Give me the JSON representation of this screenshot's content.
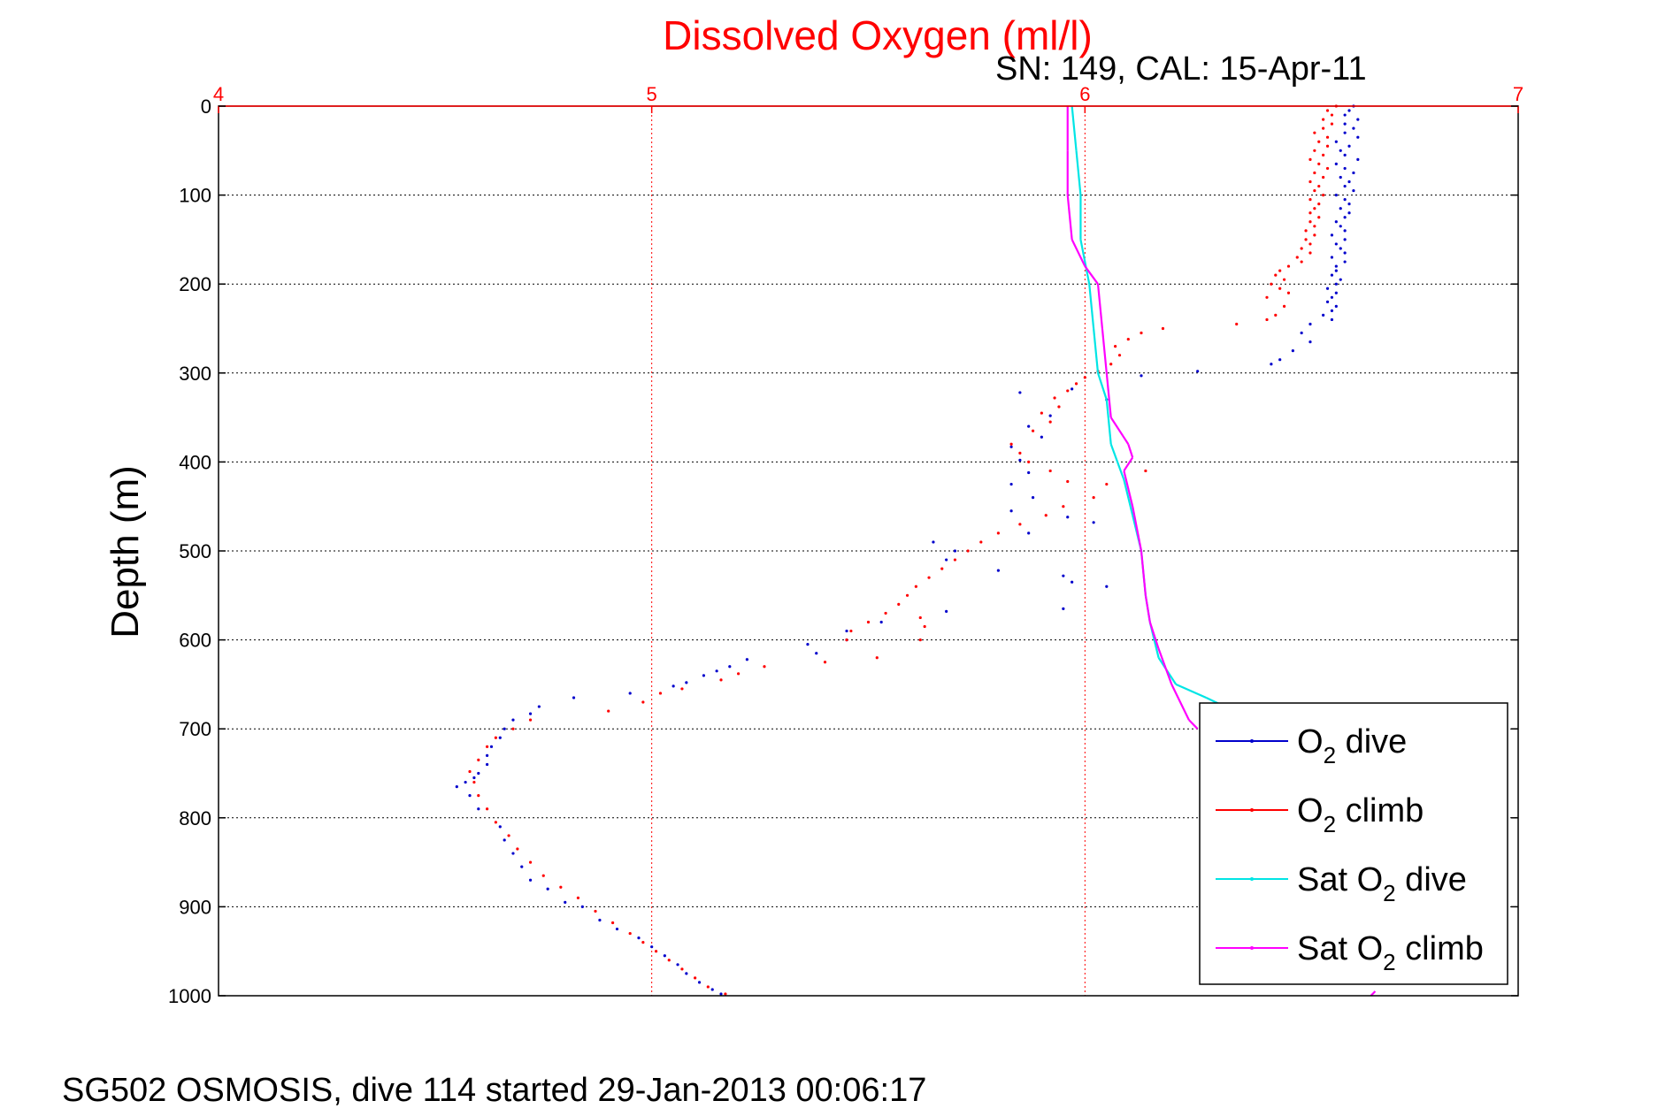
{
  "chart_data": {
    "type": "scatter",
    "title": "Dissolved Oxygen (ml/l)",
    "subtitle": "SN: 149, CAL: 15-Apr-11",
    "ylabel": "Depth (m)",
    "xlabel": "",
    "footer": "SG502 OSMOSIS, dive 114 started 29-Jan-2013 00:06:17",
    "xlim": [
      4,
      7
    ],
    "ylim": [
      0,
      1000
    ],
    "y_reversed": true,
    "x_ticks": [
      "4",
      "5",
      "6",
      "7"
    ],
    "y_ticks": [
      "0",
      "100",
      "200",
      "300",
      "400",
      "500",
      "600",
      "700",
      "800",
      "900",
      "1000"
    ],
    "x_axis_position": "top",
    "grid": true,
    "legend_position": "bottom-right",
    "colors": {
      "axis_x": "#ff0000",
      "title": "#ff0000",
      "o2_dive": "#0000cc",
      "o2_climb": "#ff0000",
      "sat_dive": "#00e5e5",
      "sat_climb": "#ff00ff"
    },
    "series": [
      {
        "key": "o2_dive",
        "legend": {
          "main": "O",
          "sub": "2",
          "rest": " dive"
        },
        "style": "dots",
        "points": [
          [
            6.62,
            0
          ],
          [
            6.61,
            5
          ],
          [
            6.6,
            10
          ],
          [
            6.63,
            15
          ],
          [
            6.6,
            20
          ],
          [
            6.62,
            25
          ],
          [
            6.6,
            30
          ],
          [
            6.63,
            35
          ],
          [
            6.58,
            40
          ],
          [
            6.61,
            45
          ],
          [
            6.59,
            50
          ],
          [
            6.6,
            55
          ],
          [
            6.63,
            60
          ],
          [
            6.58,
            65
          ],
          [
            6.6,
            70
          ],
          [
            6.62,
            75
          ],
          [
            6.59,
            80
          ],
          [
            6.61,
            85
          ],
          [
            6.6,
            90
          ],
          [
            6.62,
            95
          ],
          [
            6.58,
            100
          ],
          [
            6.6,
            105
          ],
          [
            6.61,
            110
          ],
          [
            6.59,
            115
          ],
          [
            6.61,
            120
          ],
          [
            6.6,
            125
          ],
          [
            6.58,
            130
          ],
          [
            6.59,
            135
          ],
          [
            6.6,
            140
          ],
          [
            6.57,
            145
          ],
          [
            6.6,
            150
          ],
          [
            6.58,
            155
          ],
          [
            6.59,
            160
          ],
          [
            6.6,
            165
          ],
          [
            6.57,
            170
          ],
          [
            6.6,
            175
          ],
          [
            6.58,
            180
          ],
          [
            6.58,
            185
          ],
          [
            6.57,
            190
          ],
          [
            6.59,
            195
          ],
          [
            6.58,
            200
          ],
          [
            6.56,
            205
          ],
          [
            6.58,
            210
          ],
          [
            6.57,
            215
          ],
          [
            6.56,
            220
          ],
          [
            6.58,
            225
          ],
          [
            6.57,
            230
          ],
          [
            6.55,
            235
          ],
          [
            6.57,
            240
          ],
          [
            6.52,
            245
          ],
          [
            6.5,
            255
          ],
          [
            6.52,
            265
          ],
          [
            6.48,
            275
          ],
          [
            6.45,
            285
          ],
          [
            6.43,
            290
          ],
          [
            6.26,
            298
          ],
          [
            6.13,
            303
          ],
          [
            6.05,
            330
          ],
          [
            5.97,
            318
          ],
          [
            5.85,
            322
          ],
          [
            5.92,
            348
          ],
          [
            5.87,
            360
          ],
          [
            5.9,
            372
          ],
          [
            5.83,
            383
          ],
          [
            5.85,
            398
          ],
          [
            5.87,
            412
          ],
          [
            5.83,
            425
          ],
          [
            5.88,
            440
          ],
          [
            5.83,
            455
          ],
          [
            5.96,
            462
          ],
          [
            6.02,
            468
          ],
          [
            5.87,
            480
          ],
          [
            5.65,
            490
          ],
          [
            5.7,
            500
          ],
          [
            5.68,
            510
          ],
          [
            5.8,
            522
          ],
          [
            5.95,
            528
          ],
          [
            5.97,
            535
          ],
          [
            6.05,
            540
          ],
          [
            5.95,
            565
          ],
          [
            5.68,
            568
          ],
          [
            5.53,
            580
          ],
          [
            5.45,
            590
          ],
          [
            5.45,
            600
          ],
          [
            5.36,
            605
          ],
          [
            5.38,
            615
          ],
          [
            5.22,
            622
          ],
          [
            5.18,
            630
          ],
          [
            5.15,
            635
          ],
          [
            5.12,
            640
          ],
          [
            5.08,
            648
          ],
          [
            5.05,
            652
          ],
          [
            4.95,
            660
          ],
          [
            4.82,
            665
          ],
          [
            4.74,
            675
          ],
          [
            4.72,
            683
          ],
          [
            4.68,
            690
          ],
          [
            4.66,
            700
          ],
          [
            4.65,
            710
          ],
          [
            4.63,
            720
          ],
          [
            4.62,
            730
          ],
          [
            4.62,
            740
          ],
          [
            4.6,
            750
          ],
          [
            4.59,
            755
          ],
          [
            4.57,
            760
          ],
          [
            4.55,
            765
          ],
          [
            4.58,
            775
          ],
          [
            4.6,
            790
          ],
          [
            4.65,
            810
          ],
          [
            4.66,
            825
          ],
          [
            4.68,
            840
          ],
          [
            4.7,
            855
          ],
          [
            4.72,
            870
          ],
          [
            4.76,
            880
          ],
          [
            4.8,
            895
          ],
          [
            4.84,
            900
          ],
          [
            4.88,
            915
          ],
          [
            4.92,
            925
          ],
          [
            4.97,
            935
          ],
          [
            5.0,
            945
          ],
          [
            5.03,
            955
          ],
          [
            5.06,
            965
          ],
          [
            5.08,
            975
          ],
          [
            5.11,
            985
          ],
          [
            5.14,
            993
          ],
          [
            5.16,
            998
          ]
        ]
      },
      {
        "key": "o2_climb",
        "legend": {
          "main": "O",
          "sub": "2",
          "rest": " climb"
        },
        "style": "dots",
        "points": [
          [
            6.58,
            0
          ],
          [
            6.56,
            5
          ],
          [
            6.57,
            10
          ],
          [
            6.55,
            15
          ],
          [
            6.57,
            20
          ],
          [
            6.55,
            25
          ],
          [
            6.53,
            30
          ],
          [
            6.56,
            35
          ],
          [
            6.54,
            40
          ],
          [
            6.56,
            45
          ],
          [
            6.53,
            50
          ],
          [
            6.55,
            55
          ],
          [
            6.52,
            60
          ],
          [
            6.54,
            65
          ],
          [
            6.56,
            70
          ],
          [
            6.53,
            75
          ],
          [
            6.55,
            80
          ],
          [
            6.52,
            85
          ],
          [
            6.54,
            90
          ],
          [
            6.53,
            95
          ],
          [
            6.55,
            100
          ],
          [
            6.52,
            105
          ],
          [
            6.54,
            110
          ],
          [
            6.53,
            115
          ],
          [
            6.52,
            120
          ],
          [
            6.54,
            125
          ],
          [
            6.52,
            130
          ],
          [
            6.53,
            135
          ],
          [
            6.51,
            140
          ],
          [
            6.53,
            145
          ],
          [
            6.51,
            150
          ],
          [
            6.52,
            155
          ],
          [
            6.5,
            160
          ],
          [
            6.52,
            165
          ],
          [
            6.49,
            170
          ],
          [
            6.5,
            175
          ],
          [
            6.47,
            180
          ],
          [
            6.45,
            185
          ],
          [
            6.44,
            190
          ],
          [
            6.46,
            195
          ],
          [
            6.43,
            200
          ],
          [
            6.45,
            205
          ],
          [
            6.47,
            210
          ],
          [
            6.42,
            215
          ],
          [
            6.46,
            225
          ],
          [
            6.44,
            235
          ],
          [
            6.42,
            240
          ],
          [
            6.35,
            245
          ],
          [
            6.18,
            250
          ],
          [
            6.13,
            255
          ],
          [
            6.1,
            262
          ],
          [
            6.07,
            270
          ],
          [
            6.08,
            280
          ],
          [
            6.06,
            290
          ],
          [
            6.03,
            298
          ],
          [
            6.0,
            305
          ],
          [
            5.98,
            312
          ],
          [
            5.96,
            320
          ],
          [
            5.93,
            328
          ],
          [
            5.94,
            338
          ],
          [
            5.9,
            345
          ],
          [
            5.92,
            355
          ],
          [
            5.88,
            365
          ],
          [
            5.83,
            380
          ],
          [
            5.85,
            390
          ],
          [
            5.87,
            400
          ],
          [
            5.92,
            410
          ],
          [
            5.96,
            422
          ],
          [
            6.05,
            425
          ],
          [
            6.14,
            410
          ],
          [
            6.02,
            440
          ],
          [
            5.95,
            450
          ],
          [
            5.91,
            460
          ],
          [
            5.85,
            470
          ],
          [
            5.8,
            480
          ],
          [
            5.76,
            490
          ],
          [
            5.73,
            500
          ],
          [
            5.7,
            510
          ],
          [
            5.67,
            520
          ],
          [
            5.64,
            530
          ],
          [
            5.61,
            540
          ],
          [
            5.59,
            550
          ],
          [
            5.57,
            560
          ],
          [
            5.54,
            570
          ],
          [
            5.5,
            580
          ],
          [
            5.46,
            590
          ],
          [
            5.45,
            600
          ],
          [
            5.62,
            575
          ],
          [
            5.63,
            585
          ],
          [
            5.62,
            600
          ],
          [
            5.52,
            620
          ],
          [
            5.4,
            625
          ],
          [
            5.26,
            630
          ],
          [
            5.2,
            638
          ],
          [
            5.16,
            645
          ],
          [
            5.07,
            655
          ],
          [
            5.02,
            660
          ],
          [
            4.98,
            670
          ],
          [
            4.9,
            680
          ],
          [
            4.72,
            690
          ],
          [
            4.68,
            700
          ],
          [
            4.64,
            710
          ],
          [
            4.62,
            720
          ],
          [
            4.6,
            735
          ],
          [
            4.58,
            748
          ],
          [
            4.59,
            760
          ],
          [
            4.6,
            775
          ],
          [
            4.62,
            790
          ],
          [
            4.64,
            805
          ],
          [
            4.67,
            820
          ],
          [
            4.69,
            835
          ],
          [
            4.72,
            850
          ],
          [
            4.75,
            865
          ],
          [
            4.79,
            878
          ],
          [
            4.83,
            890
          ],
          [
            4.87,
            905
          ],
          [
            4.91,
            918
          ],
          [
            4.95,
            930
          ],
          [
            4.98,
            940
          ],
          [
            5.01,
            950
          ],
          [
            5.04,
            960
          ],
          [
            5.07,
            970
          ],
          [
            5.1,
            980
          ],
          [
            5.13,
            990
          ],
          [
            5.17,
            998
          ]
        ]
      },
      {
        "key": "sat_dive",
        "legend": {
          "main": "Sat O",
          "sub": "2",
          "rest": " dive"
        },
        "style": "line",
        "points": [
          [
            5.97,
            0
          ],
          [
            5.98,
            50
          ],
          [
            5.99,
            100
          ],
          [
            5.99,
            150
          ],
          [
            6.01,
            200
          ],
          [
            6.02,
            250
          ],
          [
            6.03,
            300
          ],
          [
            6.05,
            330
          ],
          [
            6.06,
            380
          ],
          [
            6.09,
            420
          ],
          [
            6.11,
            460
          ],
          [
            6.13,
            500
          ],
          [
            6.14,
            550
          ],
          [
            6.15,
            580
          ],
          [
            6.17,
            620
          ],
          [
            6.21,
            650
          ],
          [
            6.28,
            665
          ],
          [
            6.31,
            672
          ]
        ]
      },
      {
        "key": "sat_climb",
        "legend": {
          "main": "Sat O",
          "sub": "2",
          "rest": " climb"
        },
        "style": "line",
        "points": [
          [
            5.96,
            0
          ],
          [
            5.96,
            50
          ],
          [
            5.96,
            100
          ],
          [
            5.97,
            150
          ],
          [
            6.0,
            180
          ],
          [
            6.03,
            200
          ],
          [
            6.04,
            250
          ],
          [
            6.05,
            300
          ],
          [
            6.06,
            350
          ],
          [
            6.1,
            380
          ],
          [
            6.11,
            395
          ],
          [
            6.09,
            410
          ],
          [
            6.11,
            450
          ],
          [
            6.13,
            500
          ],
          [
            6.14,
            550
          ],
          [
            6.15,
            580
          ],
          [
            6.17,
            610
          ],
          [
            6.2,
            650
          ],
          [
            6.24,
            690
          ],
          [
            6.26,
            700
          ],
          [
            6.67,
            995
          ],
          [
            6.66,
            1000
          ]
        ]
      }
    ]
  }
}
